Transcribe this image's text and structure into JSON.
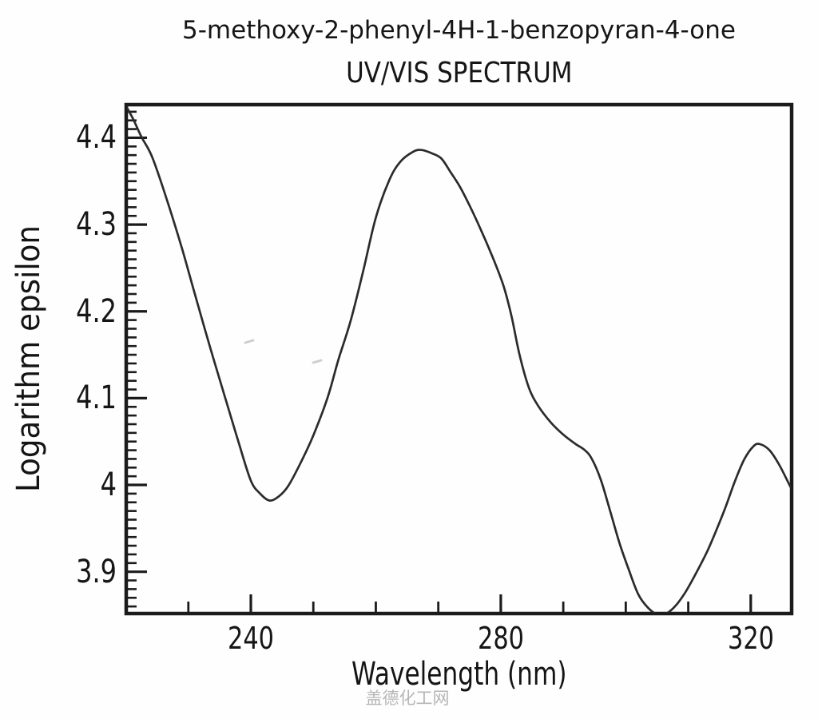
{
  "figure": {
    "title": "5-methoxy-2-phenyl-4H-1-benzopyran-4-one",
    "subtitle": "UV/VIS SPECTRUM",
    "watermark": "盖德化工网"
  },
  "colors": {
    "background": "#fefefe",
    "axis": "#1b1b1b",
    "curve": "#2b2b2b",
    "text": "#161616",
    "watermark": "#b3b3b3",
    "artifact": "#a8a8a8"
  },
  "chart_data": {
    "type": "line",
    "title": "5-methoxy-2-phenyl-4H-1-benzopyran-4-one",
    "subtitle": "UV/VIS SPECTRUM",
    "xlabel": "Wavelength (nm)",
    "ylabel": "Logarithm epsilon",
    "xlim": [
      219.8,
      326.8
    ],
    "ylim": [
      3.85,
      4.44
    ],
    "grid": false,
    "legend": null,
    "x_major_ticks": [
      240,
      280,
      320
    ],
    "x_major_tick_labels": [
      "240",
      "280",
      "320"
    ],
    "x_minor_ticks_range": [
      230,
      320
    ],
    "x_minor_tick_step": 10,
    "y_major_ticks": [
      3.9,
      4.0,
      4.1,
      4.2,
      4.3,
      4.4
    ],
    "y_major_tick_labels": [
      "3.9",
      "4",
      "4.1",
      "4.2",
      "4.3",
      "4.4"
    ],
    "y_minor_tick_step": 0.01,
    "key_points": {
      "maxima": [
        [
          267,
          4.38
        ],
        [
          321,
          4.05
        ]
      ],
      "minima": [
        [
          243,
          3.98
        ],
        [
          305.5,
          3.85
        ]
      ],
      "shoulder": [
        [
          291,
          4.05
        ]
      ]
    },
    "series": [
      {
        "name": "log epsilon",
        "points": [
          [
            220.0,
            4.437
          ],
          [
            221.2,
            4.421
          ],
          [
            222.5,
            4.401
          ],
          [
            224.2,
            4.378
          ],
          [
            226.5,
            4.33
          ],
          [
            229.0,
            4.272
          ],
          [
            231.0,
            4.221
          ],
          [
            233.5,
            4.158
          ],
          [
            236.0,
            4.098
          ],
          [
            238.0,
            4.05
          ],
          [
            240.0,
            4.005
          ],
          [
            241.5,
            3.99
          ],
          [
            243.0,
            3.982
          ],
          [
            244.5,
            3.987
          ],
          [
            246.0,
            3.999
          ],
          [
            248.0,
            4.026
          ],
          [
            250.0,
            4.057
          ],
          [
            252.3,
            4.101
          ],
          [
            254.0,
            4.144
          ],
          [
            256.0,
            4.19
          ],
          [
            258.0,
            4.247
          ],
          [
            260.0,
            4.308
          ],
          [
            262.2,
            4.352
          ],
          [
            264.0,
            4.373
          ],
          [
            266.0,
            4.384
          ],
          [
            267.3,
            4.386
          ],
          [
            269.0,
            4.382
          ],
          [
            270.5,
            4.376
          ],
          [
            272.0,
            4.36
          ],
          [
            273.5,
            4.343
          ],
          [
            275.0,
            4.322
          ],
          [
            277.0,
            4.291
          ],
          [
            279.0,
            4.257
          ],
          [
            280.5,
            4.228
          ],
          [
            281.7,
            4.195
          ],
          [
            283.0,
            4.15
          ],
          [
            284.5,
            4.112
          ],
          [
            286.0,
            4.091
          ],
          [
            288.0,
            4.072
          ],
          [
            290.0,
            4.058
          ],
          [
            292.0,
            4.047
          ],
          [
            293.3,
            4.041
          ],
          [
            294.5,
            4.031
          ],
          [
            296.0,
            4.006
          ],
          [
            297.5,
            3.97
          ],
          [
            299.0,
            3.933
          ],
          [
            300.5,
            3.902
          ],
          [
            302.0,
            3.874
          ],
          [
            303.5,
            3.859
          ],
          [
            305.0,
            3.851
          ],
          [
            306.5,
            3.852
          ],
          [
            308.0,
            3.861
          ],
          [
            309.5,
            3.876
          ],
          [
            311.0,
            3.895
          ],
          [
            313.0,
            3.923
          ],
          [
            314.5,
            3.948
          ],
          [
            316.0,
            3.975
          ],
          [
            317.5,
            4.005
          ],
          [
            319.0,
            4.03
          ],
          [
            320.5,
            4.045
          ],
          [
            321.5,
            4.047
          ],
          [
            323.0,
            4.04
          ],
          [
            324.5,
            4.024
          ],
          [
            326.0,
            4.003
          ],
          [
            326.8,
            3.991
          ]
        ]
      }
    ],
    "scan_artifacts": [
      {
        "x": 312,
        "y": 428
      },
      {
        "x": 397,
        "y": 453
      }
    ]
  }
}
